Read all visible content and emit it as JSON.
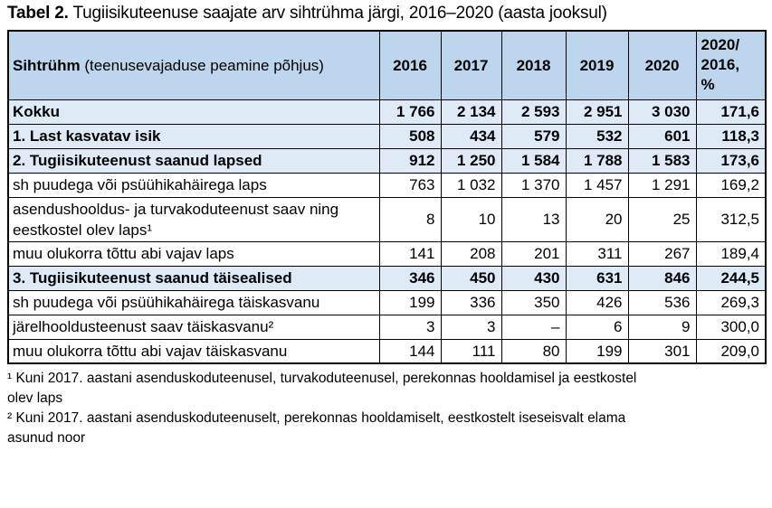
{
  "page_title": {
    "prefix": "Tabel 2.",
    "rest": " Tugiisikuteenuse saajate arv sihtrühma järgi, 2016–2020 (aasta jooksul)"
  },
  "table": {
    "header": {
      "label_main": "Sihtrühm",
      "label_note": " (teenusevajaduse peamine põhjus)",
      "year_columns": [
        "2016",
        "2017",
        "2018",
        "2019",
        "2020"
      ],
      "ratio_column": "2020/\n2016,\n%"
    },
    "rows": [
      {
        "label": "Kokku",
        "emphasis": true,
        "values": [
          "1 766",
          "2 134",
          "2 593",
          "2 951",
          "3 030",
          "171,6"
        ]
      },
      {
        "label": "1. Last kasvatav isik",
        "emphasis": true,
        "values": [
          "508",
          "434",
          "579",
          "532",
          "601",
          "118,3"
        ]
      },
      {
        "label": "2. Tugiisikuteenust saanud lapsed",
        "emphasis": true,
        "values": [
          "912",
          "1 250",
          "1 584",
          "1 788",
          "1 583",
          "173,6"
        ]
      },
      {
        "label": "sh puudega või psüühikahäirega laps",
        "emphasis": false,
        "values": [
          "763",
          "1 032",
          "1 370",
          "1 457",
          "1 291",
          "169,2"
        ]
      },
      {
        "label": "asendushooldus- ja turvakoduteenust saav ning eestkostel olev laps¹",
        "emphasis": false,
        "values": [
          "8",
          "10",
          "13",
          "20",
          "25",
          "312,5"
        ]
      },
      {
        "label": "muu olukorra tõttu abi vajav laps",
        "emphasis": false,
        "values": [
          "141",
          "208",
          "201",
          "311",
          "267",
          "189,4"
        ]
      },
      {
        "label": "3. Tugiisikuteenust saanud täisealised",
        "emphasis": true,
        "values": [
          "346",
          "450",
          "430",
          "631",
          "846",
          "244,5"
        ]
      },
      {
        "label": "sh puudega või psüühikahäirega täiskasvanu",
        "emphasis": false,
        "values": [
          "199",
          "336",
          "350",
          "426",
          "536",
          "269,3"
        ]
      },
      {
        "label": "järelhooldusteenust saav täiskasvanu²",
        "emphasis": false,
        "values": [
          "3",
          "3",
          "–",
          "6",
          "9",
          "300,0"
        ]
      },
      {
        "label": "muu olukorra tõttu abi vajav täiskasvanu",
        "emphasis": false,
        "values": [
          "144",
          "111",
          "80",
          "199",
          "301",
          "209,0"
        ]
      }
    ]
  },
  "footnotes": [
    "¹ Kuni 2017. aastani asenduskoduteenusel, turvakoduteenusel, perekonnas hooldamisel ja eestkostel\nolev laps",
    "² Kuni 2017. aastani asenduskoduteenuselt, perekonnas hooldamiselt, eestkostelt iseseisvalt elama\nasunud noor"
  ],
  "colors": {
    "header_bg": "#BDD6EE",
    "band_bg": "#DEEAF6",
    "border": "#000000",
    "text": "#000000",
    "background": "#FFFFFF"
  }
}
